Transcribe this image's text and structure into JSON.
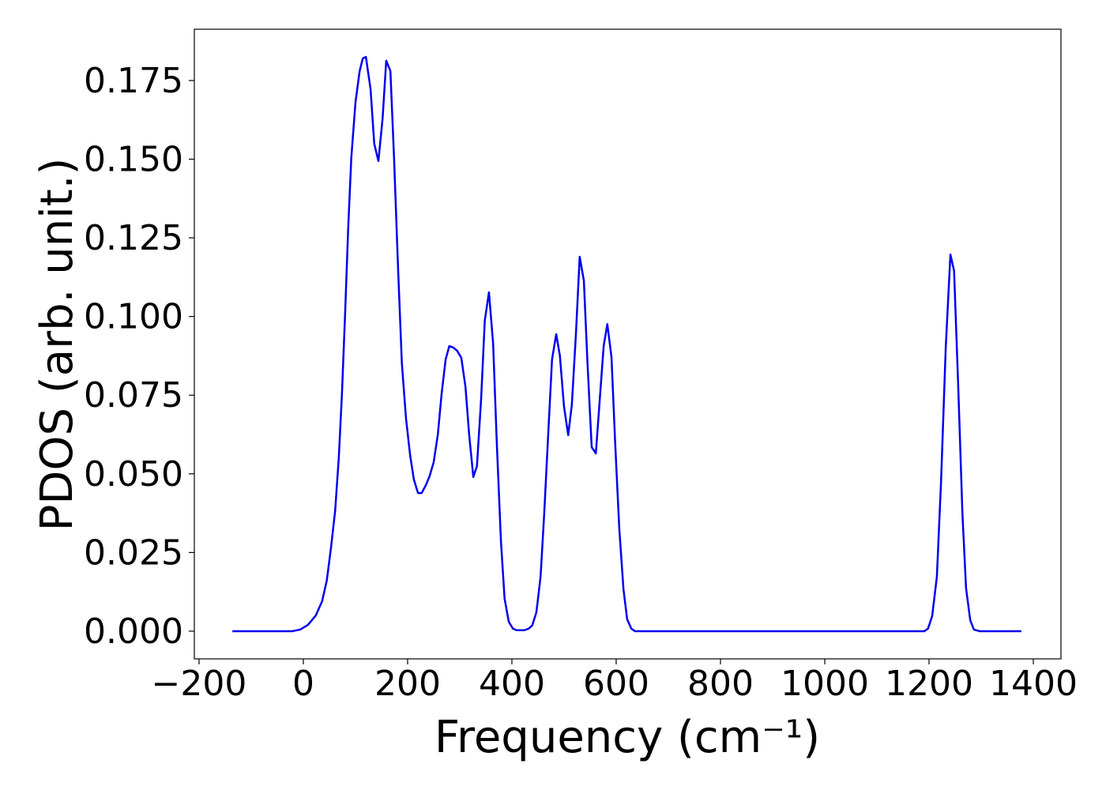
{
  "chart_data": {
    "type": "line",
    "xlabel": "Frequency (cm⁻¹)",
    "ylabel": "PDOS (arb. unit.)",
    "xlim": [
      -209,
      1453
    ],
    "ylim": [
      -0.0088,
      0.1913
    ],
    "xticks": [
      {
        "value": -200,
        "label": "−200"
      },
      0,
      200,
      400,
      600,
      800,
      1000,
      1200,
      1400
    ],
    "yticks": [
      {
        "value": 0,
        "label": "0.000"
      },
      {
        "value": 0.025,
        "label": "0.025"
      },
      {
        "value": 0.05,
        "label": "0.050"
      },
      {
        "value": 0.075,
        "label": "0.075"
      },
      {
        "value": 0.1,
        "label": "0.100"
      },
      {
        "value": 0.125,
        "label": "0.125"
      },
      {
        "value": 0.15,
        "label": "0.150"
      },
      {
        "value": 0.175,
        "label": "0.175"
      }
    ],
    "grid": false,
    "series": [
      {
        "color": "#0000ee",
        "x": [
          -136,
          -21,
          -6,
          9,
          24,
          36,
          45,
          53,
          61,
          68,
          74,
          80,
          86,
          92,
          100,
          108,
          114,
          120,
          129,
          136,
          144,
          152,
          159,
          167,
          174,
          182,
          189,
          197,
          205,
          212,
          220,
          227,
          235,
          242,
          250,
          258,
          265,
          273,
          280,
          288,
          295,
          303,
          311,
          318,
          326,
          333,
          341,
          348,
          356,
          364,
          371,
          379,
          386,
          394,
          402,
          409,
          424,
          432,
          439,
          447,
          455,
          462,
          470,
          477,
          485,
          492,
          500,
          508,
          515,
          523,
          530,
          538,
          545,
          553,
          561,
          568,
          576,
          583,
          591,
          598,
          606,
          614,
          621,
          629,
          636,
          1191,
          1198,
          1206,
          1215,
          1223,
          1232,
          1241,
          1248,
          1256,
          1264,
          1271,
          1279,
          1286,
          1297,
          1377
        ],
        "values": [
          0,
          0,
          0.0005,
          0.002,
          0.005,
          0.0095,
          0.0161,
          0.0264,
          0.0382,
          0.055,
          0.0751,
          0.1002,
          0.1278,
          0.1504,
          0.168,
          0.178,
          0.182,
          0.1825,
          0.1722,
          0.1549,
          0.1494,
          0.1629,
          0.1813,
          0.178,
          0.1504,
          0.114,
          0.0851,
          0.0675,
          0.0557,
          0.0482,
          0.0439,
          0.0439,
          0.0464,
          0.0492,
          0.0537,
          0.0625,
          0.0751,
          0.0864,
          0.0906,
          0.0901,
          0.0891,
          0.0869,
          0.0776,
          0.0625,
          0.049,
          0.0525,
          0.0738,
          0.0987,
          0.1077,
          0.0914,
          0.06,
          0.0286,
          0.0103,
          0.003,
          0.0008,
          0.0003,
          0.0003,
          0.0008,
          0.0018,
          0.006,
          0.0173,
          0.0374,
          0.0638,
          0.0864,
          0.0944,
          0.0876,
          0.0713,
          0.0623,
          0.072,
          0.0951,
          0.119,
          0.1114,
          0.0851,
          0.0585,
          0.0565,
          0.0725,
          0.0906,
          0.0976,
          0.0871,
          0.06,
          0.0324,
          0.0133,
          0.0038,
          0.0008,
          0,
          0,
          0.0008,
          0.0048,
          0.0173,
          0.0474,
          0.0901,
          0.1197,
          0.1145,
          0.0776,
          0.0374,
          0.0136,
          0.0035,
          0.0005,
          0,
          0
        ]
      }
    ]
  }
}
